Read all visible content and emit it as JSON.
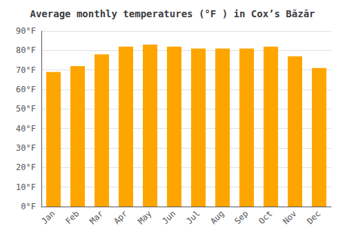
{
  "chart_data": {
    "type": "bar",
    "title": "Average monthly temperatures (°F ) in Cox’s Bāzār",
    "categories": [
      "Jan",
      "Feb",
      "Mar",
      "Apr",
      "May",
      "Jun",
      "Jul",
      "Aug",
      "Sep",
      "Oct",
      "Nov",
      "Dec"
    ],
    "values": [
      69,
      72,
      78,
      82,
      83,
      82,
      81,
      81,
      81,
      82,
      77,
      71
    ],
    "color": "#FFA500",
    "ylim": [
      0,
      90
    ],
    "yticks": [
      {
        "value": 0,
        "label": "0°F"
      },
      {
        "value": 10,
        "label": "10°F"
      },
      {
        "value": 20,
        "label": "20°F"
      },
      {
        "value": 30,
        "label": "30°F"
      },
      {
        "value": 40,
        "label": "40°F"
      },
      {
        "value": 50,
        "label": "50°F"
      },
      {
        "value": 60,
        "label": "60°F"
      },
      {
        "value": 70,
        "label": "70°F"
      },
      {
        "value": 80,
        "label": "80°F"
      },
      {
        "value": 90,
        "label": "90°F"
      }
    ],
    "grid": true
  }
}
